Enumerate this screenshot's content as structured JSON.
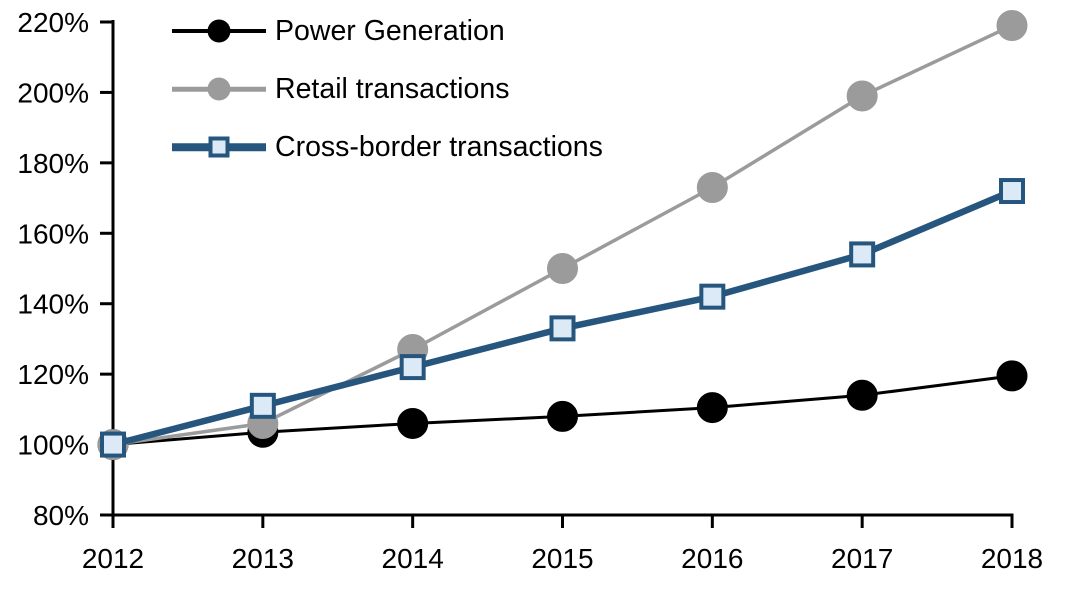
{
  "chart_data": {
    "type": "line",
    "title": "",
    "categories": [
      "2012",
      "2013",
      "2014",
      "2015",
      "2016",
      "2017",
      "2018"
    ],
    "series": [
      {
        "name": "Power Generation",
        "marker": "circle",
        "line_color": "#000000",
        "marker_fill": "#000000",
        "marker_border": "#000000",
        "line_width": 3,
        "values": [
          100,
          103.5,
          106,
          108,
          110.5,
          114,
          119.5
        ]
      },
      {
        "name": "Retail transactions",
        "marker": "circle",
        "line_color": "#9B9B9B",
        "marker_fill": "#9B9B9B",
        "marker_border": "#9B9B9B",
        "line_width": 3.5,
        "values": [
          100,
          106,
          127,
          150,
          173,
          199,
          219
        ]
      },
      {
        "name": "Cross-border transactions",
        "marker": "square",
        "line_color": "#26567E",
        "marker_fill": "#DCE9F6",
        "marker_border": "#26567E",
        "line_width": 6.5,
        "values": [
          100,
          111,
          122,
          133,
          142,
          154,
          172
        ]
      }
    ],
    "x_axis": {
      "tick_labels": [
        "2012",
        "2013",
        "2014",
        "2015",
        "2016",
        "2017",
        "2018"
      ]
    },
    "y_axis": {
      "min": 80,
      "max": 220,
      "tick_step": 20,
      "tick_values": [
        80,
        100,
        120,
        140,
        160,
        180,
        200,
        220
      ],
      "tick_labels": [
        "80%",
        "100%",
        "120%",
        "140%",
        "160%",
        "180%",
        "200%",
        "220%"
      ]
    },
    "legend_position": "top-left",
    "grid": false,
    "background_color": "#FFFFFF",
    "axis_color": "#000000"
  }
}
